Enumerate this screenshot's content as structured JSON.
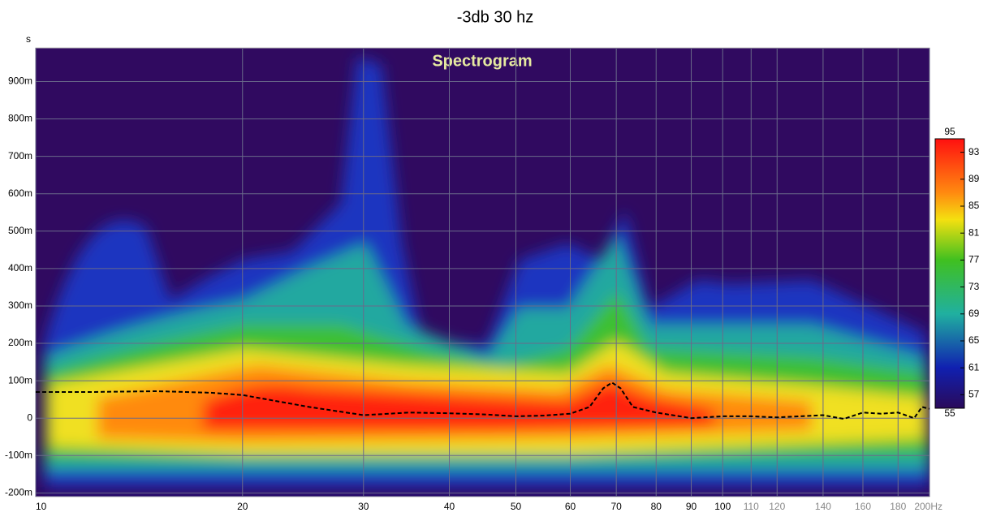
{
  "chart_data": {
    "type": "spectrogram",
    "title": "-3db 30 hz",
    "annotation": "Spectrogram",
    "y_unit": "s",
    "xscale": "log",
    "xlim": [
      10,
      200
    ],
    "xticks": [
      10,
      20,
      30,
      40,
      50,
      60,
      70,
      80,
      90,
      100,
      110,
      120,
      140,
      160,
      180,
      {
        "value": 200,
        "label": "200Hz"
      }
    ],
    "ylim": [
      -0.21,
      0.99
    ],
    "yticks": [
      {
        "value": -0.2,
        "label": "-200m"
      },
      {
        "value": -0.1,
        "label": "-100m"
      },
      0,
      {
        "value": 0.1,
        "label": "100m"
      },
      {
        "value": 0.2,
        "label": "200m"
      },
      {
        "value": 0.3,
        "label": "300m"
      },
      {
        "value": 0.4,
        "label": "400m"
      },
      {
        "value": 0.5,
        "label": "500m"
      },
      {
        "value": 0.6,
        "label": "600m"
      },
      {
        "value": 0.7,
        "label": "700m"
      },
      {
        "value": 0.8,
        "label": "800m"
      },
      {
        "value": 0.9,
        "label": "900m"
      }
    ],
    "grid": true,
    "clim": [
      95,
      55
    ],
    "cticks": [
      93,
      89,
      85,
      81,
      77,
      73,
      69,
      65,
      61,
      57
    ],
    "series": [
      {
        "color": "#000000",
        "x": [
          10,
          12,
          15,
          18,
          20,
          25,
          30,
          35,
          40,
          45,
          50,
          55,
          60,
          64,
          67,
          69,
          71,
          74,
          80,
          90,
          100,
          110,
          120,
          140,
          150,
          160,
          170,
          180,
          190,
          195,
          200
        ],
        "values": [
          0.07,
          0.07,
          0.072,
          0.068,
          0.062,
          0.03,
          0.008,
          0.015,
          0.013,
          0.01,
          0.005,
          0.007,
          0.012,
          0.03,
          0.08,
          0.095,
          0.08,
          0.03,
          0.015,
          0.0,
          0.005,
          0.005,
          0.002,
          0.008,
          -0.002,
          0.015,
          0.012,
          0.015,
          0.0,
          0.03,
          0.025
        ]
      }
    ]
  }
}
